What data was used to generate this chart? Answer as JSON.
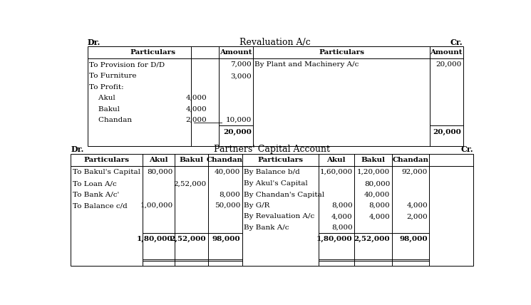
{
  "bg_color": "#ffffff",
  "t1_title": "Revaluation A/c",
  "t1_dr": "Dr.",
  "t1_cr": "Cr.",
  "t1_left_rows": [
    {
      "part": "To Provision for D/D",
      "sub": "",
      "amt": "7,000",
      "total": false
    },
    {
      "part": "To Furniture",
      "sub": "",
      "amt": "3,000",
      "total": false
    },
    {
      "part": "To Profit:",
      "sub": "",
      "amt": "",
      "total": false
    },
    {
      "part": "    Akul",
      "sub": "4,000",
      "amt": "",
      "total": false
    },
    {
      "part": "    Bakul",
      "sub": "4,000",
      "amt": "",
      "total": false
    },
    {
      "part": "    Chandan",
      "sub": "2,000",
      "amt": "10,000",
      "total": false
    },
    {
      "part": "",
      "sub": "",
      "amt": "20,000",
      "total": true
    }
  ],
  "t1_right_rows": [
    {
      "part": "By Plant and Machinery A/c",
      "amt": "20,000",
      "total": false
    },
    {
      "part": "",
      "amt": "",
      "total": false
    },
    {
      "part": "",
      "amt": "",
      "total": false
    },
    {
      "part": "",
      "amt": "",
      "total": false
    },
    {
      "part": "",
      "amt": "",
      "total": false
    },
    {
      "part": "",
      "amt": "",
      "total": false
    },
    {
      "part": "",
      "amt": "20,000",
      "total": true
    }
  ],
  "t2_title": "Partners' Capital Account",
  "t2_dr": "Dr.",
  "t2_cr": "Cr.",
  "t2_headers": [
    "Particulars",
    "Akul",
    "Bakul",
    "Chandan",
    "Particulars",
    "Akul",
    "Bakul",
    "Chandan"
  ],
  "t2_rows": [
    [
      "To Bakul's Capital",
      "80,000",
      "",
      "40,000",
      "By Balance b/d",
      "1,60,000",
      "1,20,000",
      "92,000"
    ],
    [
      "To Loan A/c",
      "",
      "2,52,000",
      "",
      "By Akul's Capital",
      "",
      "80,000",
      ""
    ],
    [
      "To Bank A/c'",
      "",
      "",
      "8,000",
      "By Chandan's Capital",
      "",
      "40,000",
      ""
    ],
    [
      "To Balance c/d",
      "1,00,000",
      "",
      "50,000",
      "By G/R",
      "8,000",
      "8,000",
      "4,000"
    ],
    [
      "",
      "",
      "",
      "",
      "By Revaluation A/c",
      "4,000",
      "4,000",
      "2,000"
    ],
    [
      "",
      "",
      "",
      "",
      "By Bank A/c",
      "8,000",
      "",
      ""
    ],
    [
      "",
      "1,80,000",
      "2,52,000",
      "98,000",
      "",
      "1,80,000",
      "2,52,000",
      "98,000"
    ]
  ]
}
